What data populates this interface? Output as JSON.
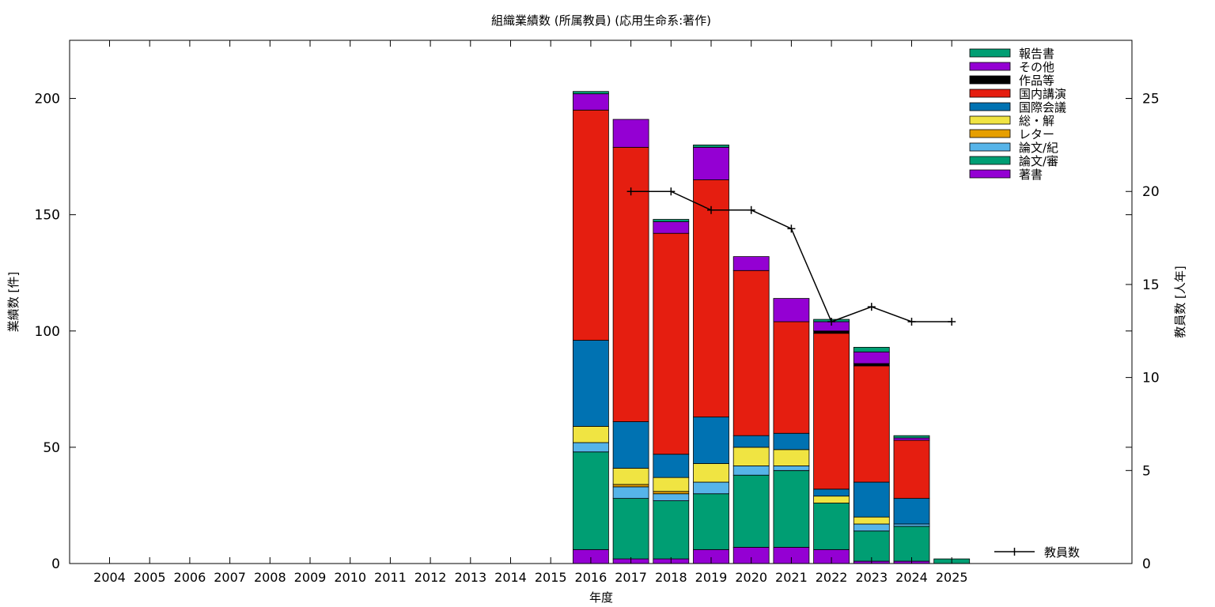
{
  "chart_data": {
    "type": "bar",
    "title": "組織業績数 (所属教員) (応用生命系:著作)",
    "xlabel": "年度",
    "ylabel": "業績数 [件]",
    "y2label": "教員数 [人年]",
    "categories": [
      "2004",
      "2005",
      "2006",
      "2007",
      "2008",
      "2009",
      "2010",
      "2011",
      "2012",
      "2013",
      "2014",
      "2015",
      "2016",
      "2017",
      "2018",
      "2019",
      "2020",
      "2021",
      "2022",
      "2023",
      "2024",
      "2025"
    ],
    "ylim": [
      0,
      225
    ],
    "y2lim": [
      0,
      28.125
    ],
    "yticks": [
      0,
      50,
      100,
      150,
      200
    ],
    "y2ticks": [
      0,
      5,
      10,
      15,
      20,
      25
    ],
    "grid": false,
    "legend_position": "top-right",
    "series": [
      {
        "name": "著書",
        "color": "#9400d3",
        "values": [
          0,
          0,
          0,
          0,
          0,
          0,
          0,
          0,
          0,
          0,
          0,
          0,
          6,
          2,
          2,
          6,
          7,
          7,
          6,
          1,
          1,
          0
        ]
      },
      {
        "name": "論文/審",
        "color": "#009e73",
        "values": [
          0,
          0,
          0,
          0,
          0,
          0,
          0,
          0,
          0,
          0,
          0,
          0,
          42,
          26,
          25,
          24,
          31,
          33,
          20,
          13,
          15,
          2
        ]
      },
      {
        "name": "論文/紀",
        "color": "#56b4e9",
        "values": [
          0,
          0,
          0,
          0,
          0,
          0,
          0,
          0,
          0,
          0,
          0,
          0,
          4,
          5,
          3,
          5,
          4,
          2,
          0,
          3,
          1,
          0
        ]
      },
      {
        "name": "レター",
        "color": "#e69f00",
        "values": [
          0,
          0,
          0,
          0,
          0,
          0,
          0,
          0,
          0,
          0,
          0,
          0,
          0,
          1,
          1,
          0,
          0,
          0,
          0,
          0,
          0,
          0
        ]
      },
      {
        "name": "総・解",
        "color": "#f0e442",
        "values": [
          0,
          0,
          0,
          0,
          0,
          0,
          0,
          0,
          0,
          0,
          0,
          0,
          7,
          7,
          6,
          8,
          8,
          7,
          3,
          3,
          0,
          0
        ]
      },
      {
        "name": "国際会議",
        "color": "#0072b2",
        "values": [
          0,
          0,
          0,
          0,
          0,
          0,
          0,
          0,
          0,
          0,
          0,
          0,
          37,
          20,
          10,
          20,
          5,
          7,
          3,
          15,
          11,
          0
        ]
      },
      {
        "name": "国内講演",
        "color": "#e51e10",
        "values": [
          0,
          0,
          0,
          0,
          0,
          0,
          0,
          0,
          0,
          0,
          0,
          0,
          99,
          118,
          95,
          102,
          71,
          48,
          67,
          50,
          25,
          0
        ]
      },
      {
        "name": "作品等",
        "color": "#000000",
        "values": [
          0,
          0,
          0,
          0,
          0,
          0,
          0,
          0,
          0,
          0,
          0,
          0,
          0,
          0,
          0,
          0,
          0,
          0,
          1,
          1,
          0,
          0
        ]
      },
      {
        "name": "その他",
        "color": "#9400d3",
        "values": [
          0,
          0,
          0,
          0,
          0,
          0,
          0,
          0,
          0,
          0,
          0,
          0,
          7,
          12,
          5,
          14,
          6,
          10,
          4,
          5,
          1,
          0
        ]
      },
      {
        "name": "報告書",
        "color": "#009e73",
        "values": [
          0,
          0,
          0,
          0,
          0,
          0,
          0,
          0,
          0,
          0,
          0,
          0,
          1,
          0,
          1,
          1,
          0,
          0,
          1,
          2,
          1,
          0
        ]
      }
    ],
    "line": {
      "name": "教員数",
      "color": "#000000",
      "categories": [
        "2017",
        "2018",
        "2019",
        "2020",
        "2021",
        "2022",
        "2023",
        "2024",
        "2025"
      ],
      "values": [
        20,
        20,
        19,
        19,
        18,
        13,
        13.8,
        13,
        13
      ]
    }
  }
}
